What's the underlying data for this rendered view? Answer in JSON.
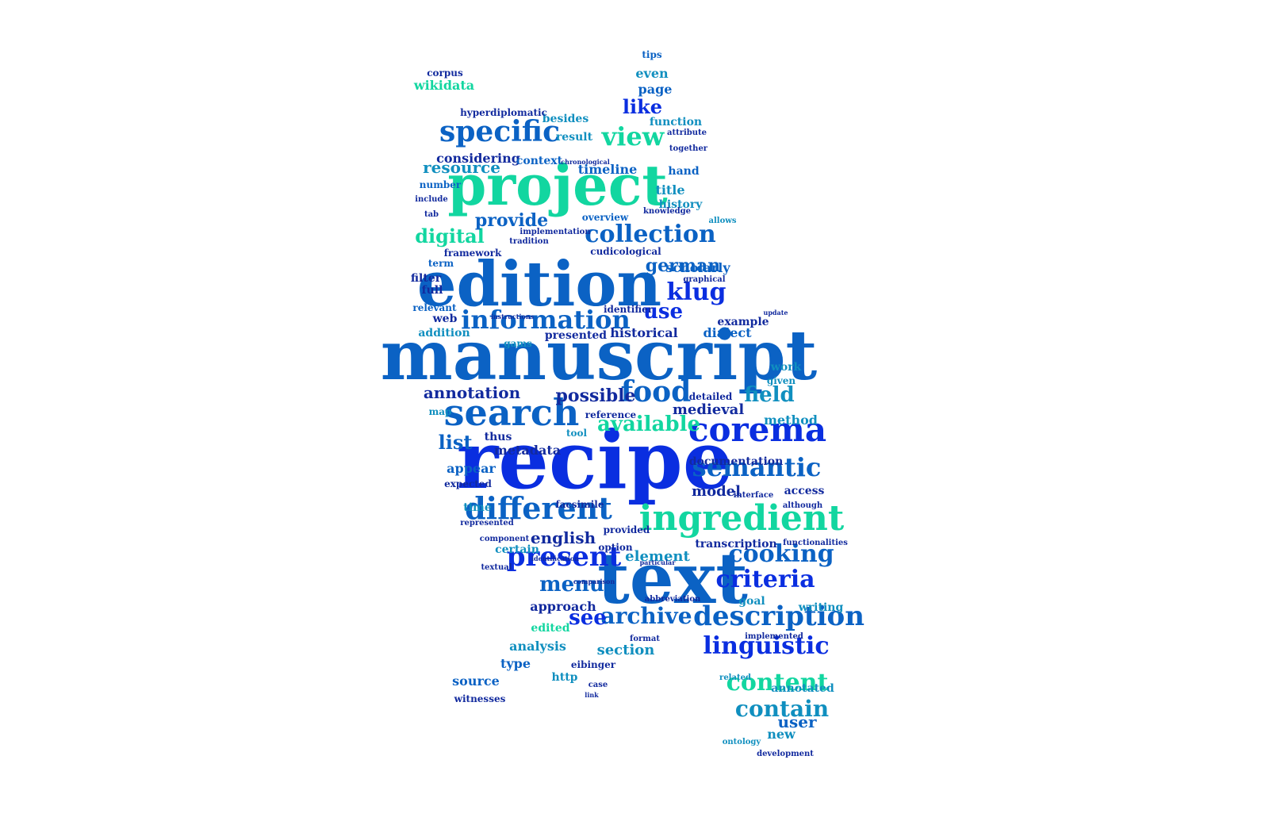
{
  "colors": {
    "blue": "#0a2ee0",
    "midblue": "#0b62c4",
    "teal": "#108fbf",
    "green": "#12d6a0",
    "navy": "#122a9e"
  },
  "words": [
    "recipe",
    "manuscript",
    "text",
    "edition",
    "project",
    "search",
    "corema",
    "ingredient",
    "specific",
    "information",
    "different",
    "description",
    "semantic",
    "linguistic",
    "food",
    "cooking",
    "present",
    "view",
    "archive",
    "collection",
    "criteria",
    "menu",
    "content",
    "contain",
    "klug",
    "digital",
    "annotation",
    "available",
    "use",
    "like",
    "list",
    "possible",
    "german",
    "resource",
    "see",
    "provide",
    "considering",
    "timeline",
    "medieval",
    "field",
    "scholarly",
    "model",
    "english",
    "metadata",
    "historical",
    "approach",
    "element",
    "section",
    "access",
    "documentation",
    "transcription",
    "example",
    "wikidata",
    "context",
    "result",
    "besides",
    "even",
    "page",
    "tips",
    "function",
    "title",
    "history",
    "hand",
    "dialect",
    "identifier",
    "work",
    "given",
    "method",
    "annotated",
    "user",
    "new",
    "analysis",
    "edited",
    "type",
    "source",
    "witnesses",
    "eibinger",
    "http",
    "thus",
    "tool",
    "detailed",
    "presented",
    "web",
    "term",
    "filter",
    "full",
    "relevant",
    "addition",
    "number",
    "include",
    "tab",
    "framework",
    "cudicological",
    "overview",
    "implementation",
    "tradition",
    "appear",
    "expected",
    "map",
    "time",
    "facsimile",
    "provided",
    "component",
    "certain",
    "textual",
    "goal",
    "writing",
    "option",
    "reference",
    "implemented",
    "related",
    "development",
    "corpus",
    "hyperdiplomatic",
    "knowledge",
    "graphical",
    "together",
    "attribute",
    "update",
    "ontology",
    "link",
    "case",
    "format",
    "interface",
    "although",
    "functionalities",
    "instructions",
    "particular",
    "identification",
    "comparison",
    "abbreviation",
    "represented",
    "allows",
    "chronological",
    "gams"
  ]
}
